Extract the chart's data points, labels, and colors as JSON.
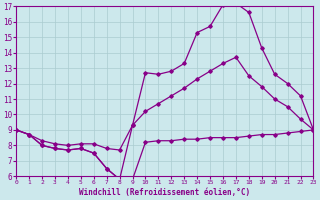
{
  "xlabel": "Windchill (Refroidissement éolien,°C)",
  "bg_color": "#cce8ec",
  "line_color": "#880088",
  "grid_color": "#aaccd0",
  "xlim": [
    0,
    23
  ],
  "ylim": [
    6,
    17
  ],
  "xticks": [
    0,
    1,
    2,
    3,
    4,
    5,
    6,
    7,
    8,
    9,
    10,
    11,
    12,
    13,
    14,
    15,
    16,
    17,
    18,
    19,
    20,
    21,
    22,
    23
  ],
  "yticks": [
    6,
    7,
    8,
    9,
    10,
    11,
    12,
    13,
    14,
    15,
    16,
    17
  ],
  "curve_top_x": [
    0,
    1,
    2,
    3,
    4,
    5,
    6,
    7,
    8,
    9,
    10,
    11,
    12,
    13,
    14,
    15,
    16,
    17,
    18,
    19,
    20,
    21,
    22,
    23
  ],
  "curve_top_y": [
    9.0,
    8.7,
    8.0,
    7.8,
    7.7,
    7.8,
    7.5,
    6.5,
    5.8,
    9.3,
    12.7,
    12.6,
    12.8,
    13.3,
    15.3,
    15.7,
    17.1,
    17.2,
    16.6,
    14.3,
    12.6,
    12.0,
    11.2,
    9.0
  ],
  "curve_mid_x": [
    0,
    1,
    2,
    3,
    4,
    5,
    6,
    7,
    8,
    9,
    10,
    11,
    12,
    13,
    14,
    15,
    16,
    17,
    18,
    19,
    20,
    21,
    22,
    23
  ],
  "curve_mid_y": [
    9.0,
    8.7,
    8.3,
    8.1,
    8.0,
    8.1,
    8.1,
    7.8,
    7.7,
    9.3,
    10.2,
    10.7,
    11.2,
    11.7,
    12.3,
    12.8,
    13.3,
    13.7,
    12.5,
    11.8,
    11.0,
    10.5,
    9.7,
    9.0
  ],
  "curve_bot_x": [
    0,
    1,
    2,
    3,
    4,
    5,
    6,
    7,
    8,
    9,
    10,
    11,
    12,
    13,
    14,
    15,
    16,
    17,
    18,
    19,
    20,
    21,
    22,
    23
  ],
  "curve_bot_y": [
    9.0,
    8.7,
    8.0,
    7.8,
    7.7,
    7.8,
    7.5,
    6.5,
    5.8,
    5.8,
    8.2,
    8.3,
    8.3,
    8.4,
    8.4,
    8.5,
    8.5,
    8.5,
    8.6,
    8.7,
    8.7,
    8.8,
    8.9,
    9.0
  ]
}
